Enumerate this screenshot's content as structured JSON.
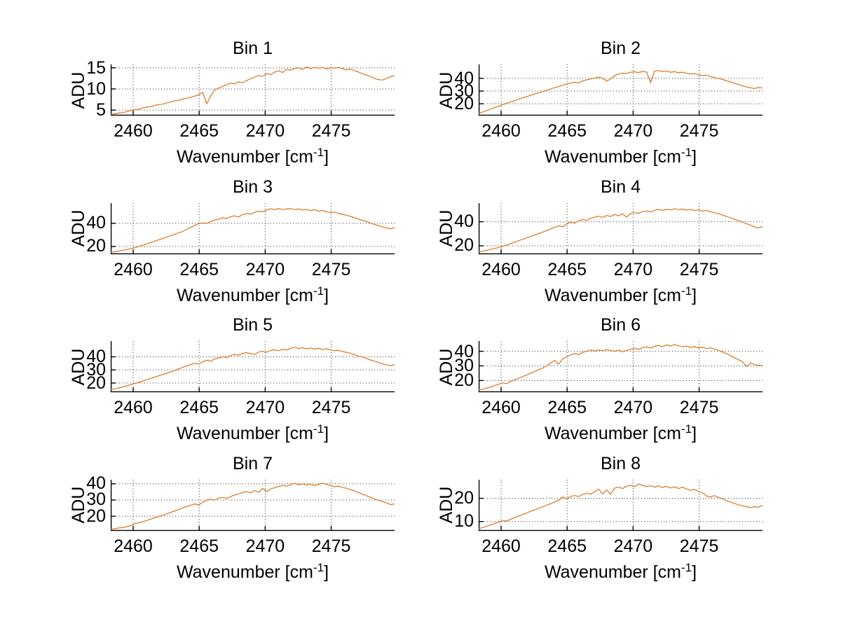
{
  "figure": {
    "background": "#ffffff",
    "axis_color": "#000000",
    "grid_color": "#2b2b2b",
    "line_color": "#d9731e",
    "ylabel": "ADU",
    "xlabel_prefix": "Wavenumber [cm",
    "xlabel_superscript": "-1",
    "xlabel_suffix": "]"
  },
  "chart_data": [
    {
      "type": "line",
      "title": "Bin 1",
      "xlabel": "Wavenumber [cm^-1]",
      "ylabel": "ADU",
      "x_start": 2458.3,
      "x_end": 2479.8,
      "x_ticks": [
        2460,
        2465,
        2470,
        2475
      ],
      "y_ticks": [
        5,
        10,
        15
      ],
      "ylim": [
        3.7,
        15.8
      ],
      "grid": true,
      "legend": null,
      "y_values": [
        4.0,
        4.1,
        4.3,
        4.4,
        4.6,
        4.9,
        5.1,
        5.2,
        5.5,
        5.7,
        5.8,
        6.1,
        6.3,
        6.4,
        6.7,
        6.9,
        7.2,
        7.3,
        7.6,
        7.8,
        8.0,
        8.3,
        8.6,
        9.2,
        6.5,
        8.3,
        9.8,
        10.2,
        10.6,
        11.0,
        11.4,
        11.2,
        11.7,
        11.5,
        12.0,
        12.4,
        12.8,
        13.2,
        13.0,
        13.6,
        13.4,
        14.0,
        14.3,
        13.9,
        14.6,
        14.4,
        14.8,
        15.0,
        14.6,
        15.2,
        14.8,
        15.1,
        14.9,
        15.1,
        14.7,
        15.0,
        14.9,
        15.1,
        14.8,
        14.5,
        14.7,
        14.3,
        14.0,
        13.6,
        13.3,
        12.9,
        12.5,
        12.2,
        12.1,
        12.5,
        12.9,
        13.2
      ]
    },
    {
      "type": "line",
      "title": "Bin 2",
      "xlabel": "Wavenumber [cm^-1]",
      "ylabel": "ADU",
      "x_start": 2458.3,
      "x_end": 2479.8,
      "x_ticks": [
        2460,
        2465,
        2470,
        2475
      ],
      "y_ticks": [
        20,
        30,
        40
      ],
      "ylim": [
        10.7,
        51.0
      ],
      "grid": true,
      "legend": null,
      "y_values": [
        12.5,
        13.5,
        14.6,
        15.8,
        17.0,
        18.1,
        19.2,
        20.3,
        21.4,
        22.4,
        23.5,
        24.6,
        25.6,
        26.6,
        27.7,
        28.7,
        29.6,
        30.7,
        31.6,
        32.7,
        33.5,
        34.6,
        35.5,
        36.3,
        37.0,
        36.5,
        38.0,
        38.8,
        39.5,
        40.3,
        41.0,
        40.2,
        37.8,
        39.5,
        42.0,
        43.5,
        44.2,
        43.8,
        44.8,
        45.2,
        44.6,
        45.5,
        45.0,
        36.8,
        45.8,
        46.2,
        45.4,
        45.9,
        44.8,
        45.3,
        44.4,
        44.9,
        44.0,
        43.4,
        43.8,
        42.8,
        42.2,
        42.6,
        41.5,
        40.6,
        40.0,
        39.2,
        38.0,
        37.2,
        36.2,
        35.1,
        34.2,
        33.3,
        32.6,
        32.0,
        32.8,
        32.4
      ]
    },
    {
      "type": "line",
      "title": "Bin 3",
      "xlabel": "Wavenumber [cm^-1]",
      "ylabel": "ADU",
      "x_start": 2458.3,
      "x_end": 2479.8,
      "x_ticks": [
        2460,
        2465,
        2470,
        2475
      ],
      "y_ticks": [
        20,
        40
      ],
      "ylim": [
        13.3,
        57.5
      ],
      "grid": true,
      "legend": null,
      "y_values": [
        15.0,
        15.4,
        16.0,
        16.6,
        17.3,
        18.0,
        19.0,
        20.0,
        21.0,
        22.2,
        23.4,
        24.6,
        25.8,
        27.0,
        28.2,
        29.4,
        30.6,
        31.8,
        33.0,
        34.8,
        36.5,
        38.2,
        39.8,
        40.3,
        40.0,
        41.5,
        42.8,
        43.5,
        44.8,
        44.2,
        45.8,
        46.5,
        45.5,
        47.5,
        48.5,
        48.0,
        49.5,
        50.5,
        50.0,
        51.5,
        52.5,
        51.8,
        52.8,
        51.9,
        52.4,
        52.9,
        51.8,
        52.5,
        51.5,
        52.0,
        51.0,
        51.8,
        50.5,
        51.2,
        50.0,
        49.2,
        49.8,
        48.5,
        47.8,
        47.0,
        46.0,
        44.8,
        43.6,
        42.5,
        41.5,
        40.2,
        39.0,
        38.0,
        37.0,
        36.0,
        35.3,
        36.2
      ]
    },
    {
      "type": "line",
      "title": "Bin 4",
      "xlabel": "Wavenumber [cm^-1]",
      "ylabel": "ADU",
      "x_start": 2458.3,
      "x_end": 2479.8,
      "x_ticks": [
        2460,
        2465,
        2470,
        2475
      ],
      "y_ticks": [
        20,
        40
      ],
      "ylim": [
        13.0,
        55.5
      ],
      "grid": true,
      "legend": null,
      "y_values": [
        15.0,
        15.5,
        16.2,
        17.0,
        17.8,
        18.6,
        19.6,
        20.6,
        21.8,
        23.0,
        24.2,
        25.4,
        26.6,
        27.8,
        29.0,
        30.2,
        31.4,
        32.6,
        34.0,
        35.4,
        36.6,
        35.8,
        38.0,
        39.6,
        38.8,
        40.8,
        41.8,
        41.0,
        42.8,
        43.8,
        44.6,
        43.6,
        45.2,
        44.4,
        46.0,
        45.0,
        46.5,
        44.0,
        46.8,
        47.6,
        47.0,
        48.4,
        49.0,
        48.2,
        49.6,
        50.2,
        49.4,
        50.4,
        49.8,
        50.8,
        50.0,
        50.6,
        49.6,
        50.3,
        49.2,
        49.9,
        48.8,
        49.5,
        48.2,
        47.5,
        46.6,
        45.6,
        44.4,
        43.2,
        42.0,
        40.8,
        39.6,
        38.4,
        37.2,
        35.8,
        34.8,
        36.0
      ]
    },
    {
      "type": "line",
      "title": "Bin 5",
      "xlabel": "Wavenumber [cm^-1]",
      "ylabel": "ADU",
      "x_start": 2458.3,
      "x_end": 2479.8,
      "x_ticks": [
        2460,
        2465,
        2470,
        2475
      ],
      "y_ticks": [
        20,
        30,
        40
      ],
      "ylim": [
        13.0,
        52.0
      ],
      "grid": true,
      "legend": null,
      "y_values": [
        15.0,
        15.5,
        16.2,
        17.0,
        17.8,
        18.7,
        19.6,
        20.5,
        21.5,
        22.5,
        23.5,
        24.5,
        25.5,
        26.5,
        27.5,
        28.5,
        29.5,
        30.8,
        32.0,
        33.0,
        34.0,
        35.0,
        34.4,
        36.2,
        37.4,
        36.6,
        38.4,
        39.2,
        40.0,
        39.4,
        41.0,
        41.8,
        41.2,
        42.6,
        43.2,
        42.4,
        41.8,
        43.6,
        44.2,
        43.6,
        44.8,
        45.4,
        44.6,
        45.8,
        45.2,
        46.4,
        47.4,
        46.2,
        47.0,
        46.0,
        46.8,
        45.8,
        46.5,
        45.5,
        46.2,
        45.2,
        44.6,
        45.0,
        44.0,
        43.4,
        42.6,
        41.6,
        40.4,
        39.8,
        38.6,
        37.6,
        36.6,
        35.6,
        34.6,
        33.8,
        33.2,
        34.0
      ]
    },
    {
      "type": "line",
      "title": "Bin 6",
      "xlabel": "Wavenumber [cm^-1]",
      "ylabel": "ADU",
      "x_start": 2458.3,
      "x_end": 2479.8,
      "x_ticks": [
        2460,
        2465,
        2470,
        2475
      ],
      "y_ticks": [
        20,
        30,
        40
      ],
      "ylim": [
        12.0,
        47.0
      ],
      "grid": true,
      "legend": null,
      "y_values": [
        13.5,
        14.0,
        14.8,
        15.6,
        16.5,
        17.4,
        18.4,
        17.8,
        19.4,
        20.5,
        21.6,
        22.7,
        23.8,
        25.0,
        26.2,
        27.4,
        28.6,
        30.0,
        32.0,
        33.8,
        31.2,
        34.8,
        36.2,
        37.4,
        38.4,
        37.8,
        39.2,
        40.0,
        40.8,
        40.2,
        41.0,
        40.4,
        41.2,
        40.6,
        40.0,
        40.8,
        39.6,
        40.6,
        41.4,
        42.0,
        41.4,
        42.4,
        43.0,
        42.2,
        43.4,
        44.0,
        43.2,
        44.4,
        43.6,
        44.6,
        43.8,
        43.0,
        43.6,
        42.6,
        43.2,
        42.2,
        42.8,
        41.8,
        42.4,
        41.4,
        40.6,
        39.6,
        38.4,
        37.0,
        35.6,
        34.2,
        32.8,
        29.6,
        32.0,
        31.0,
        30.2,
        30.4
      ]
    },
    {
      "type": "line",
      "title": "Bin 7",
      "xlabel": "Wavenumber [cm^-1]",
      "ylabel": "ADU",
      "x_start": 2458.3,
      "x_end": 2479.8,
      "x_ticks": [
        2460,
        2465,
        2470,
        2475
      ],
      "y_ticks": [
        20,
        30,
        40
      ],
      "ylim": [
        11.0,
        42.5
      ],
      "grid": true,
      "legend": null,
      "y_values": [
        12.0,
        12.3,
        12.8,
        13.0,
        13.6,
        14.2,
        15.4,
        16.0,
        16.6,
        17.4,
        18.2,
        19.0,
        19.8,
        20.6,
        21.5,
        22.4,
        23.3,
        24.2,
        25.1,
        26.0,
        26.8,
        27.6,
        26.9,
        28.6,
        29.8,
        30.6,
        29.8,
        31.2,
        31.6,
        31.0,
        32.2,
        33.0,
        33.8,
        34.6,
        35.2,
        34.4,
        35.8,
        34.8,
        37.2,
        35.2,
        36.8,
        37.6,
        38.4,
        39.0,
        38.4,
        39.6,
        40.2,
        39.4,
        40.0,
        39.2,
        39.8,
        38.8,
        39.6,
        40.4,
        39.6,
        38.8,
        38.2,
        38.6,
        37.8,
        37.2,
        36.4,
        35.6,
        34.6,
        33.6,
        32.6,
        31.6,
        30.6,
        29.8,
        29.0,
        28.2,
        27.2,
        27.6
      ]
    },
    {
      "type": "line",
      "title": "Bin 8",
      "xlabel": "Wavenumber [cm^-1]",
      "ylabel": "ADU",
      "x_start": 2458.3,
      "x_end": 2479.8,
      "x_ticks": [
        2460,
        2465,
        2470,
        2475
      ],
      "y_ticks": [
        10,
        20
      ],
      "ylim": [
        6.0,
        28.0
      ],
      "grid": true,
      "legend": null,
      "y_values": [
        7.0,
        7.4,
        8.0,
        8.6,
        9.2,
        9.8,
        10.4,
        10.2,
        11.0,
        11.8,
        12.4,
        13.0,
        13.7,
        14.4,
        15.0,
        15.7,
        16.4,
        17.0,
        17.7,
        18.4,
        19.2,
        20.6,
        19.8,
        20.8,
        21.2,
        20.8,
        21.6,
        22.2,
        21.8,
        22.8,
        24.0,
        21.9,
        23.6,
        21.8,
        24.4,
        24.8,
        24.2,
        25.2,
        25.6,
        25.0,
        26.2,
        25.6,
        25.0,
        25.4,
        24.8,
        25.4,
        24.6,
        25.2,
        24.4,
        25.0,
        24.2,
        24.8,
        24.0,
        23.4,
        23.8,
        23.0,
        22.4,
        21.0,
        20.6,
        21.2,
        20.4,
        19.8,
        19.0,
        18.4,
        17.8,
        17.2,
        16.8,
        16.4,
        16.0,
        16.4,
        16.2,
        17.0
      ]
    }
  ]
}
